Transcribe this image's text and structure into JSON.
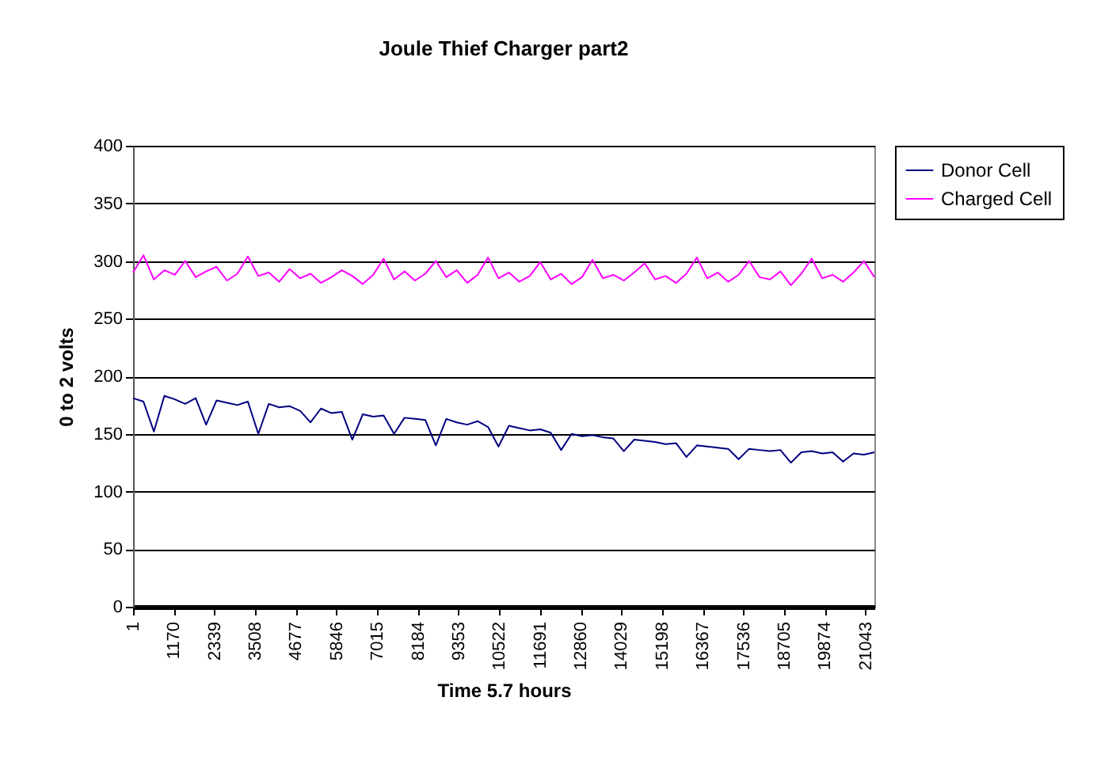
{
  "chart_data": {
    "type": "line",
    "title": "Joule Thief Charger part2",
    "xlabel": "Time 5.7 hours",
    "ylabel": "0 to 2 volts",
    "x": [
      1,
      300,
      600,
      900,
      1200,
      1500,
      1800,
      2100,
      2400,
      2700,
      3000,
      3300,
      3600,
      3900,
      4200,
      4500,
      4800,
      5100,
      5400,
      5700,
      6000,
      6300,
      6600,
      6900,
      7200,
      7500,
      7800,
      8100,
      8400,
      8700,
      9000,
      9300,
      9600,
      9900,
      10200,
      10500,
      10800,
      11100,
      11400,
      11700,
      12000,
      12300,
      12600,
      12900,
      13200,
      13500,
      13800,
      14100,
      14400,
      14700,
      15000,
      15300,
      15600,
      15900,
      16200,
      16500,
      16800,
      17100,
      17400,
      17700,
      18000,
      18300,
      18600,
      18900,
      19200,
      19500,
      19800,
      20100,
      20400,
      20700,
      21000,
      21300
    ],
    "series": [
      {
        "name": "Donor Cell",
        "color": "#000080",
        "values": [
          181,
          178,
          152,
          183,
          180,
          176,
          181,
          158,
          179,
          177,
          175,
          178,
          150,
          176,
          173,
          174,
          170,
          160,
          172,
          168,
          169,
          145,
          167,
          165,
          166,
          150,
          164,
          163,
          162,
          140,
          163,
          160,
          158,
          161,
          156,
          139,
          157,
          155,
          153,
          154,
          151,
          136,
          150,
          148,
          149,
          147,
          146,
          135,
          145,
          144,
          143,
          141,
          142,
          130,
          140,
          139,
          138,
          137,
          128,
          137,
          136,
          135,
          136,
          125,
          134,
          135,
          133,
          134,
          126,
          133,
          132,
          134
        ]
      },
      {
        "name": "Charged Cell",
        "color": "#ff00ff",
        "values": [
          290,
          305,
          284,
          292,
          288,
          300,
          286,
          291,
          295,
          283,
          289,
          304,
          287,
          290,
          282,
          293,
          285,
          289,
          281,
          286,
          292,
          287,
          280,
          288,
          302,
          284,
          291,
          283,
          289,
          300,
          286,
          292,
          281,
          288,
          303,
          285,
          290,
          282,
          287,
          299,
          284,
          289,
          280,
          286,
          301,
          285,
          288,
          283,
          290,
          298,
          284,
          287,
          281,
          289,
          303,
          285,
          290,
          282,
          288,
          300,
          286,
          284,
          291,
          279,
          289,
          302,
          285,
          288,
          282,
          290,
          300,
          286
        ]
      }
    ],
    "xlim": [
      1,
      21300
    ],
    "xticks": [
      1,
      1170,
      2339,
      3508,
      4677,
      5846,
      7015,
      8184,
      9353,
      10522,
      11691,
      12860,
      14029,
      15198,
      16367,
      17536,
      18705,
      19874,
      21043
    ],
    "ylim": [
      0,
      400
    ],
    "yticks": [
      0,
      50,
      100,
      150,
      200,
      250,
      300,
      350,
      400
    ],
    "grid": "y",
    "legend": "right",
    "marker": "none",
    "line_style": "solid"
  }
}
